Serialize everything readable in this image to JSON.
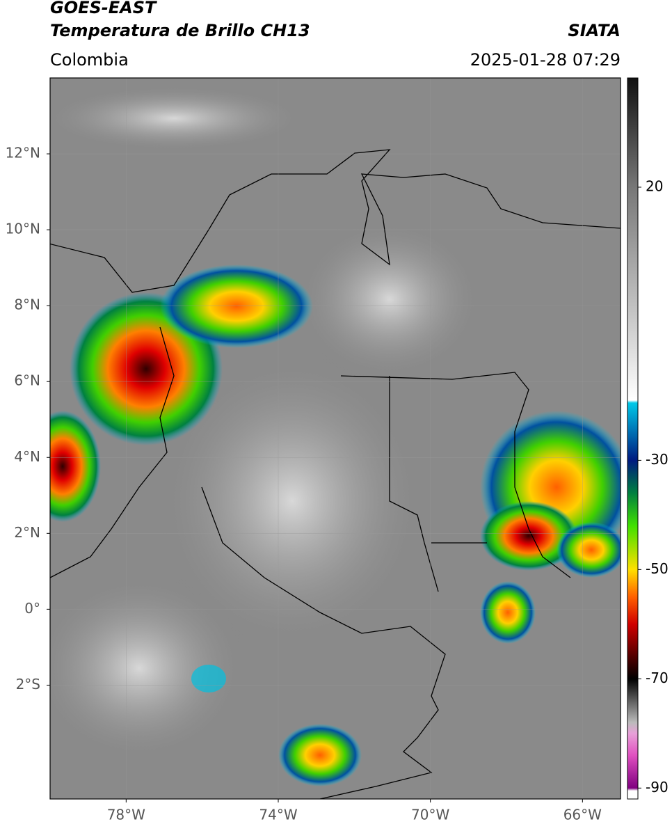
{
  "header": {
    "title": "GOES-EAST",
    "subtitle": "Temperatura de Brillo CH13",
    "region": "Colombia",
    "source": "SIATA",
    "timestamp": "2025-01-28 07:29"
  },
  "map": {
    "xlim": [
      -80,
      -65
    ],
    "ylim": [
      -5,
      14
    ],
    "xticks": [
      {
        "value": -78,
        "label": "78°W"
      },
      {
        "value": -74,
        "label": "74°W"
      },
      {
        "value": -70,
        "label": "70°W"
      },
      {
        "value": -66,
        "label": "66°W"
      }
    ],
    "yticks": [
      {
        "value": 12,
        "label": "12°N"
      },
      {
        "value": 10,
        "label": "10°N"
      },
      {
        "value": 8,
        "label": "8°N"
      },
      {
        "value": 6,
        "label": "6°N"
      },
      {
        "value": 4,
        "label": "4°N"
      },
      {
        "value": 2,
        "label": "2°N"
      },
      {
        "value": 0,
        "label": "0°"
      },
      {
        "value": -2,
        "label": "2°S"
      }
    ],
    "grid": true
  },
  "colorbar": {
    "lim": [
      -92,
      40
    ],
    "ticks": [
      20,
      -30,
      -50,
      -70,
      -90
    ],
    "colormap": [
      [
        40,
        "#111111"
      ],
      [
        20,
        "#777777"
      ],
      [
        -5,
        "#cccccc"
      ],
      [
        -19,
        "#ffffff"
      ],
      [
        -19.5,
        "#00c8e8"
      ],
      [
        -30,
        "#001a80"
      ],
      [
        -36,
        "#008040"
      ],
      [
        -42,
        "#40e000"
      ],
      [
        -50,
        "#ffe000"
      ],
      [
        -55,
        "#ff6000"
      ],
      [
        -60,
        "#d00000"
      ],
      [
        -66,
        "#500000"
      ],
      [
        -70,
        "#000000"
      ],
      [
        -78,
        "#bbbbbb"
      ],
      [
        -80,
        "#e8a0d8"
      ],
      [
        -84,
        "#e050c0"
      ],
      [
        -90,
        "#800080"
      ],
      [
        -90.5,
        "#ffffff"
      ]
    ]
  }
}
